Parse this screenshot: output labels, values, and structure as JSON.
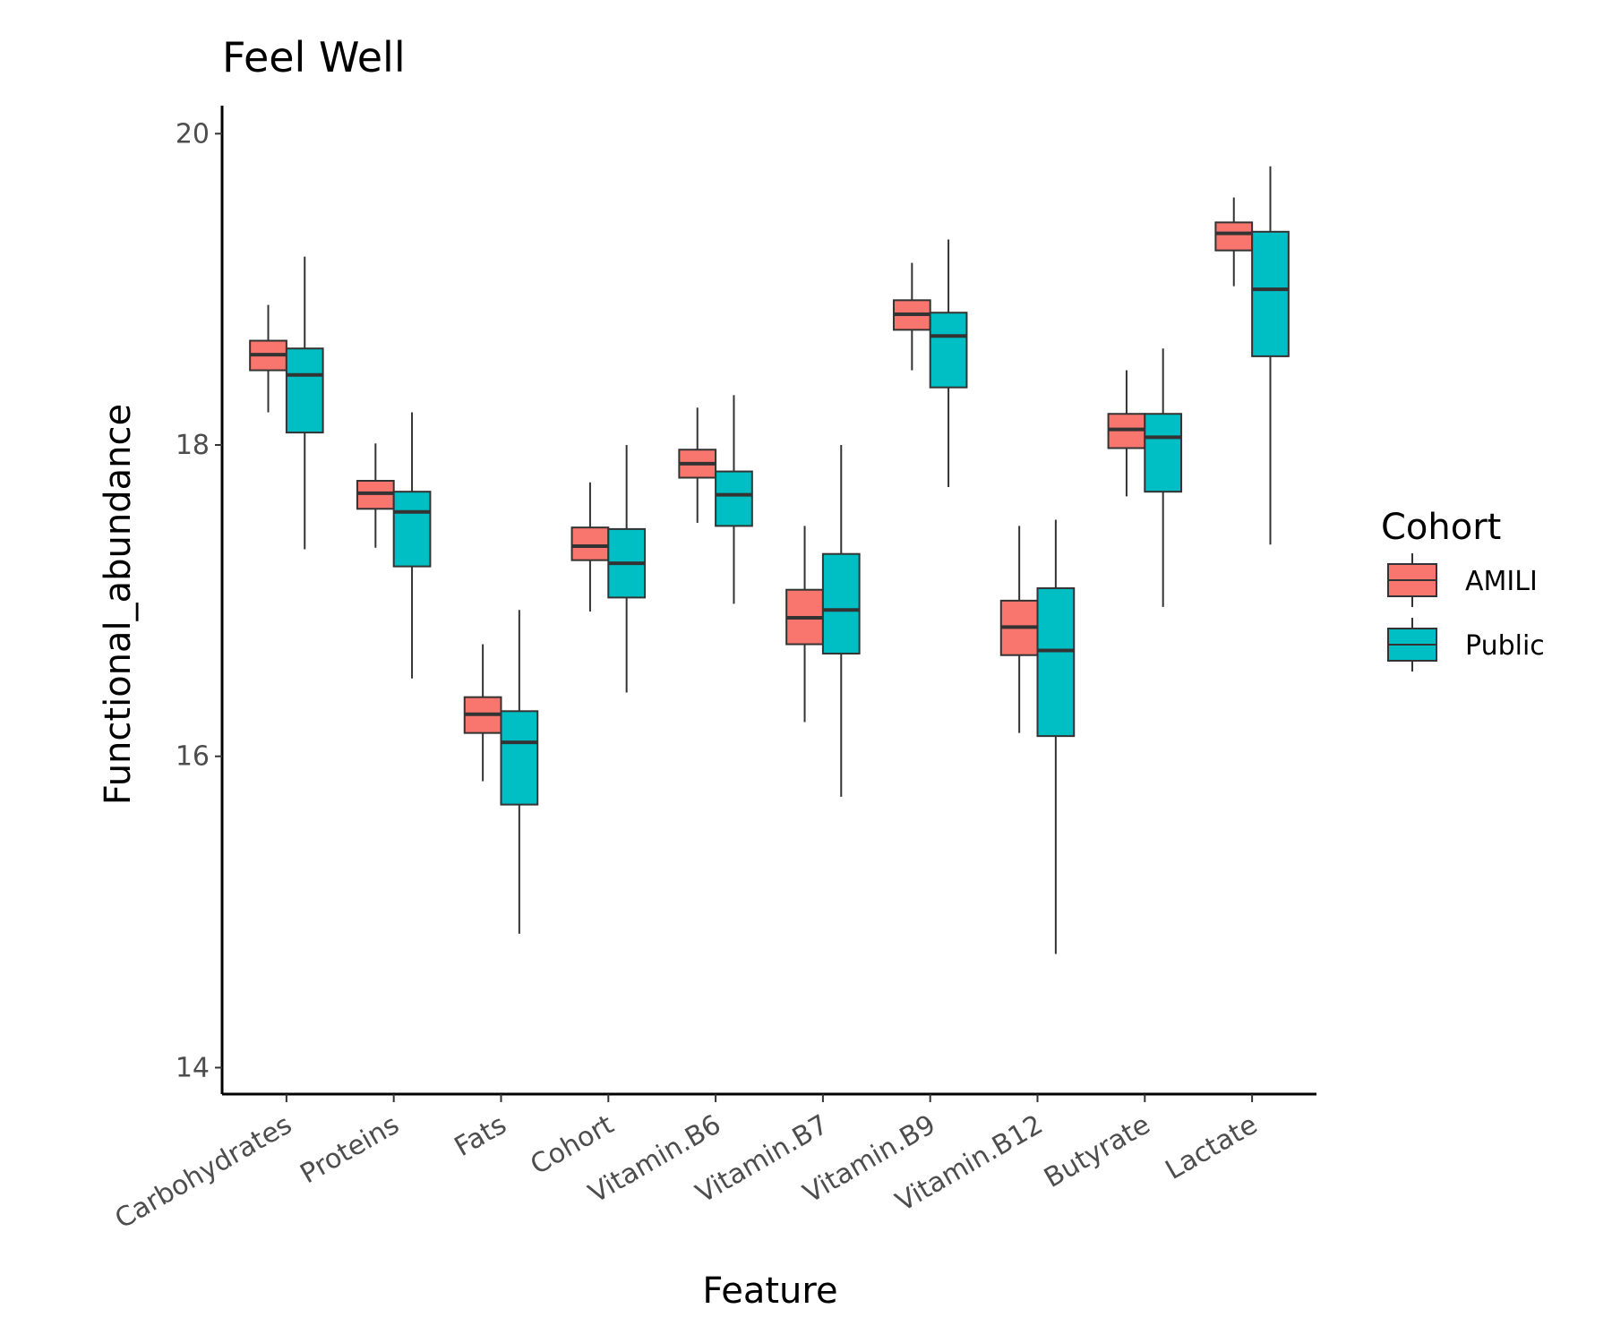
{
  "chart_data": {
    "type": "boxplot",
    "title": "Feel Well",
    "xlabel": "Feature",
    "ylabel": "Functional_abundance",
    "ylim": [
      13.83,
      20.18
    ],
    "yticks": [
      14,
      16,
      18,
      20
    ],
    "grid": false,
    "legend_position": "right",
    "legend_title": "Cohort",
    "categories": [
      "Carbohydrates",
      "Proteins",
      "Fats",
      "Cohort",
      "Vitamin.B6",
      "Vitamin.B7",
      "Vitamin.B9",
      "Vitamin.B12",
      "Butyrate",
      "Lactate"
    ],
    "series": [
      {
        "name": "AMILI",
        "color": "#F8766D",
        "boxes": [
          {
            "min": 18.21,
            "q1": 18.48,
            "median": 18.58,
            "q3": 18.67,
            "max": 18.9
          },
          {
            "min": 17.34,
            "q1": 17.59,
            "median": 17.69,
            "q3": 17.77,
            "max": 18.01
          },
          {
            "min": 15.84,
            "q1": 16.15,
            "median": 16.27,
            "q3": 16.38,
            "max": 16.72
          },
          {
            "min": 16.93,
            "q1": 17.26,
            "median": 17.35,
            "q3": 17.47,
            "max": 17.76
          },
          {
            "min": 17.5,
            "q1": 17.79,
            "median": 17.88,
            "q3": 17.97,
            "max": 18.24
          },
          {
            "min": 16.22,
            "q1": 16.72,
            "median": 16.89,
            "q3": 17.07,
            "max": 17.48
          },
          {
            "min": 18.48,
            "q1": 18.74,
            "median": 18.84,
            "q3": 18.93,
            "max": 19.17
          },
          {
            "min": 16.15,
            "q1": 16.65,
            "median": 16.83,
            "q3": 17.0,
            "max": 17.48
          },
          {
            "min": 17.67,
            "q1": 17.98,
            "median": 18.1,
            "q3": 18.2,
            "max": 18.48
          },
          {
            "min": 19.02,
            "q1": 19.25,
            "median": 19.36,
            "q3": 19.43,
            "max": 19.59
          }
        ]
      },
      {
        "name": "Public",
        "color": "#00BFC4",
        "boxes": [
          {
            "min": 17.33,
            "q1": 18.08,
            "median": 18.45,
            "q3": 18.62,
            "max": 19.21
          },
          {
            "min": 16.5,
            "q1": 17.22,
            "median": 17.57,
            "q3": 17.7,
            "max": 18.21
          },
          {
            "min": 14.86,
            "q1": 15.69,
            "median": 16.09,
            "q3": 16.29,
            "max": 16.94
          },
          {
            "min": 16.41,
            "q1": 17.02,
            "median": 17.24,
            "q3": 17.46,
            "max": 18.0
          },
          {
            "min": 16.98,
            "q1": 17.48,
            "median": 17.68,
            "q3": 17.83,
            "max": 18.32
          },
          {
            "min": 15.74,
            "q1": 16.66,
            "median": 16.94,
            "q3": 17.3,
            "max": 18.0
          },
          {
            "min": 17.73,
            "q1": 18.37,
            "median": 18.7,
            "q3": 18.85,
            "max": 19.32
          },
          {
            "min": 14.73,
            "q1": 16.13,
            "median": 16.68,
            "q3": 17.08,
            "max": 17.52
          },
          {
            "min": 16.96,
            "q1": 17.7,
            "median": 18.05,
            "q3": 18.2,
            "max": 18.62
          },
          {
            "min": 17.36,
            "q1": 18.57,
            "median": 19.0,
            "q3": 19.37,
            "max": 19.79
          }
        ]
      }
    ]
  }
}
